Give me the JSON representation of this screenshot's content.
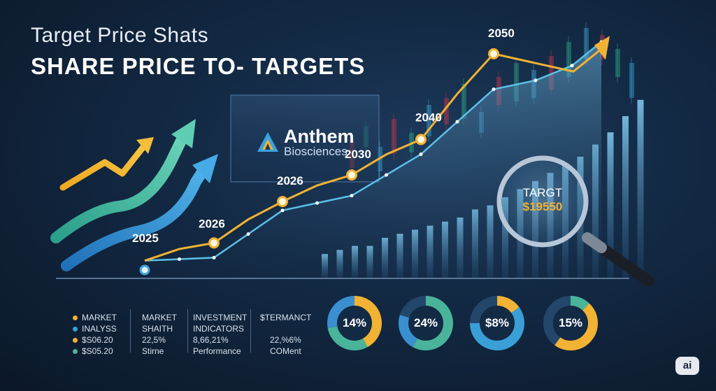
{
  "header": {
    "title": "Target Price Shats",
    "subtitle": "SHARE PRICE TO- TARGETS"
  },
  "brand": {
    "name": "Anthem",
    "sub": "Biosciences"
  },
  "magnifier": {
    "label": "TARGT",
    "value": "$19550"
  },
  "legend": {
    "items": [
      {
        "label": "MARKET",
        "color": "#f2b233"
      },
      {
        "label": "INALYSS",
        "color": "#3a9fd6"
      },
      {
        "label": "$S06.20",
        "color": "#f2b233"
      },
      {
        "label": "$S05.20",
        "color": "#49b49a"
      }
    ]
  },
  "columns": [
    {
      "lines": [
        "MARKET",
        "SHAITH",
        "22,5%",
        "Stirne"
      ]
    },
    {
      "lines": [
        "INVESTMENT",
        "INDICATORS",
        "8,66,21%",
        "Performance"
      ]
    },
    {
      "lines": [
        "$TERMANCT",
        "",
        "22,%6%",
        "COMent"
      ]
    }
  ],
  "donuts": [
    {
      "label": "14%",
      "segments": [
        {
          "value": 42,
          "color": "#f2b233"
        },
        {
          "value": 30,
          "color": "#49b49a"
        },
        {
          "value": 28,
          "color": "#3a8fd0"
        }
      ]
    },
    {
      "label": "24%",
      "segments": [
        {
          "value": 58,
          "color": "#49b49a"
        },
        {
          "value": 22,
          "color": "#3a8fd0"
        },
        {
          "value": 20,
          "color": "#23466b"
        }
      ]
    },
    {
      "label": "$8%",
      "segments": [
        {
          "value": 15,
          "color": "#f2b233"
        },
        {
          "value": 60,
          "color": "#3a9fd6"
        },
        {
          "value": 25,
          "color": "#23466b"
        }
      ]
    },
    {
      "label": "15%",
      "segments": [
        {
          "value": 12,
          "color": "#49b49a"
        },
        {
          "value": 48,
          "color": "#f2b233"
        },
        {
          "value": 40,
          "color": "#23466b"
        }
      ]
    }
  ],
  "badge": "ai",
  "colors": {
    "gold": "#f2b233",
    "blue": "#5cc0e8",
    "teal": "#49b49a"
  },
  "chart_data": {
    "type": "line",
    "title": "Target Price Shats",
    "subtitle": "SHARE PRICE TO- TARGETS",
    "point_labels": [
      "2025",
      "2026",
      "2026",
      "2030",
      "2040",
      "2050"
    ],
    "series": [
      {
        "values": [
          6,
          12,
          26,
          35,
          47,
          76
        ]
      },
      {
        "values": [
          6,
          7,
          23,
          28,
          42,
          64
        ]
      }
    ],
    "secondary_series_extra_points": 2,
    "bars": [
      6,
      7,
      8,
      8,
      10,
      11,
      12,
      13,
      14,
      15,
      17,
      18,
      20,
      22,
      24,
      26,
      28,
      30,
      33,
      36,
      40,
      44
    ],
    "grid": false,
    "legend": "bottom-left"
  }
}
